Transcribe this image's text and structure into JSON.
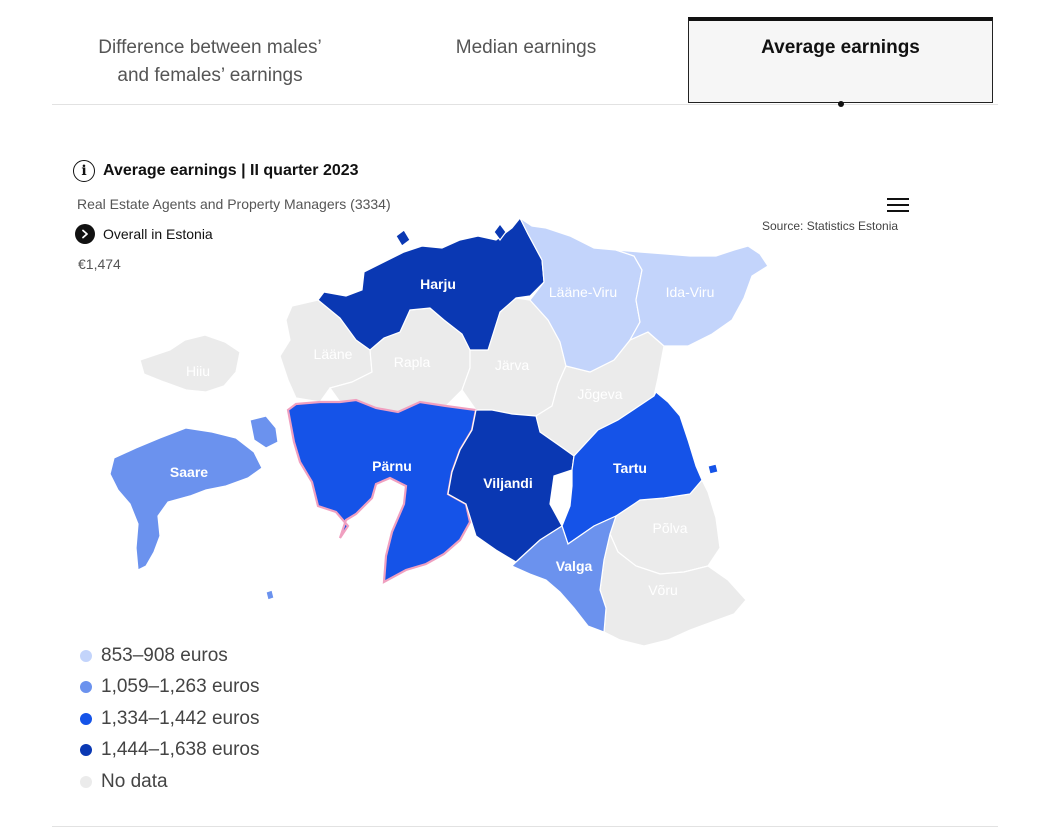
{
  "tabs": [
    {
      "label": "Difference between males’ and females’ earnings",
      "active": false
    },
    {
      "label": "Median earnings",
      "active": false
    },
    {
      "label": "Average earnings",
      "active": true
    }
  ],
  "chart": {
    "title": "Average earnings | II quarter 2023",
    "subtitle": "Real Estate Agents and Property Managers (3334)",
    "overall_label": "Overall in Estonia",
    "overall_value": "€1,474",
    "source": "Source: Statistics Estonia"
  },
  "colors": {
    "c1": "#c3d4fb",
    "c2": "#6b92ee",
    "c3": "#1553e8",
    "c4": "#0a38b3",
    "nodata": "#ebebeb",
    "highlight": "#f0a0c0"
  },
  "legend": [
    {
      "label": "853–908 euros",
      "color": "#c3d4fb"
    },
    {
      "label": "1,059–1,263 euros",
      "color": "#6b92ee"
    },
    {
      "label": "1,334–1,442 euros",
      "color": "#1553e8"
    },
    {
      "label": "1,444–1,638 euros",
      "color": "#0a38b3"
    },
    {
      "label": "No data",
      "color": "#ebebeb"
    }
  ],
  "regions": {
    "harju": {
      "name": "Harju",
      "bin": "1,444–1,638 euros"
    },
    "laane_viru": {
      "name": "Lääne-Viru",
      "bin": "853–908 euros"
    },
    "ida_viru": {
      "name": "Ida-Viru",
      "bin": "853–908 euros"
    },
    "hiiu": {
      "name": "Hiiu",
      "bin": "No data"
    },
    "laane": {
      "name": "Lääne",
      "bin": "No data"
    },
    "rapla": {
      "name": "Rapla",
      "bin": "No data"
    },
    "jarva": {
      "name": "Järva",
      "bin": "No data"
    },
    "jogeva": {
      "name": "Jõgeva",
      "bin": "No data"
    },
    "saare": {
      "name": "Saare",
      "bin": "1,059–1,263 euros"
    },
    "parnu": {
      "name": "Pärnu",
      "bin": "1,334–1,442 euros"
    },
    "viljandi": {
      "name": "Viljandi",
      "bin": "1,444–1,638 euros"
    },
    "tartu": {
      "name": "Tartu",
      "bin": "1,334–1,442 euros"
    },
    "polva": {
      "name": "Põlva",
      "bin": "No data"
    },
    "valga": {
      "name": "Valga",
      "bin": "1,059–1,263 euros"
    },
    "voru": {
      "name": "Võru",
      "bin": "No data"
    }
  }
}
